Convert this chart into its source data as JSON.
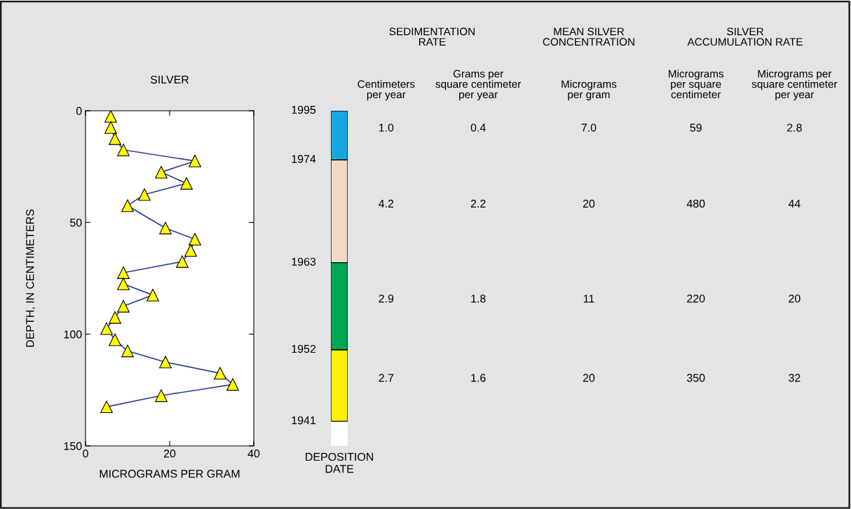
{
  "chart_data": [
    {
      "type": "line",
      "title": "SILVER",
      "xlabel": "MICROGRAMS PER GRAM",
      "ylabel": "DEPTH, IN CENTIMETERS",
      "xlim": [
        0,
        40
      ],
      "xticks": [
        0,
        20,
        40
      ],
      "ylim": [
        150,
        0
      ],
      "yticks": [
        0,
        50,
        100,
        150
      ],
      "grid": false,
      "marker": "triangle",
      "line_style": "solid",
      "series": [
        {
          "color": "#2b3f99",
          "x": [
            6,
            6,
            7,
            9,
            26,
            18,
            24,
            14,
            10,
            19,
            26,
            25,
            23,
            9,
            9,
            16,
            9,
            7,
            5,
            7,
            10,
            19,
            32,
            35,
            18,
            5
          ],
          "values": [
            2.5,
            7.5,
            12.5,
            17.5,
            22.5,
            27.5,
            32.5,
            37.5,
            42.5,
            52.5,
            57.5,
            62.5,
            67.5,
            72.5,
            77.5,
            82.5,
            87.5,
            92.5,
            97.5,
            102.5,
            107.5,
            112.5,
            117.5,
            122.5,
            127.5,
            132.5
          ]
        }
      ]
    },
    {
      "type": "bar",
      "stacked": true,
      "xlabel": "DEPOSITION\nDATE",
      "categories": [
        null
      ],
      "ylim": [
        150,
        0
      ],
      "tick_labels": false,
      "series": [
        {
          "color": "#1aa7e0",
          "values": [
            22
          ]
        },
        {
          "color": "#f1d8c8",
          "values": [
            46
          ]
        },
        {
          "color": "#00a651",
          "values": [
            39
          ]
        },
        {
          "color": "#fff200",
          "values": [
            32
          ]
        }
      ],
      "annotations": [
        "1995",
        "1974",
        "1963",
        "1952",
        "1941"
      ]
    },
    {
      "type": "other",
      "annotations": [
        "SEDIMENTATION\nRATE",
        "MEAN SILVER\nCONCENTRATION",
        "SILVER\nACCUMULATION RATE"
      ],
      "categories": [
        "Centimeters\nper year",
        "Grams per\nsquare centimeter\nper year",
        "Micrograms\nper gram",
        "Micrograms\nper square\ncentimeter",
        "Micrograms per\nsquare centimeter\nper year"
      ],
      "cell_labels": [
        [
          "1.0",
          "0.4",
          "7.0",
          "59",
          "2.8"
        ],
        [
          "4.2",
          "2.2",
          "20",
          "480",
          "44"
        ],
        [
          "2.9",
          "1.8",
          "11",
          "220",
          "20"
        ],
        [
          "2.7",
          "1.6",
          "20",
          "350",
          "32"
        ]
      ]
    }
  ]
}
